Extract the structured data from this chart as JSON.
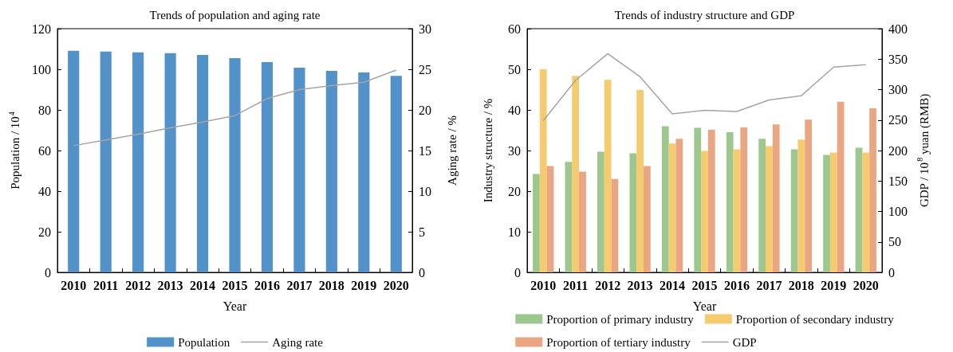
{
  "chart_data": [
    {
      "type": "bar",
      "title": "Trends of population and aging rate",
      "xlabel": "Year",
      "ylabel": "Population / 10$^{4}$",
      "y2label": "Aging rate / %",
      "categories": [
        "2010",
        "2011",
        "2012",
        "2013",
        "2014",
        "2015",
        "2016",
        "2017",
        "2018",
        "2019",
        "2020"
      ],
      "series": [
        {
          "name": "Population",
          "color": "#5292c8",
          "values": [
            109.1,
            108.7,
            108.3,
            107.9,
            107.1,
            105.5,
            103.5,
            100.8,
            99.2,
            98.4,
            96.8
          ]
        },
        {
          "name": "Aging rate",
          "type": "line",
          "axis": "y2",
          "color": "#a5a5a5",
          "values": [
            15.6,
            16.3,
            17.0,
            17.8,
            18.5,
            19.3,
            21.4,
            22.5,
            23.0,
            23.4,
            24.9
          ]
        }
      ],
      "ylim": [
        0,
        120
      ],
      "yticks": [
        0,
        20,
        40,
        60,
        80,
        100,
        120
      ],
      "y2lim": [
        0,
        30
      ],
      "y2ticks": [
        0,
        5,
        10,
        15,
        20,
        25,
        30
      ],
      "legend": "bottom",
      "marker": "none"
    },
    {
      "type": "bar",
      "title": "Trends of industry structure and GDP",
      "xlabel": "Year",
      "ylabel": "Industry structure / %",
      "y2label": "GDP / 10$^{8}$ yuan (RMB)",
      "categories": [
        "2010",
        "2011",
        "2012",
        "2013",
        "2014",
        "2015",
        "2016",
        "2017",
        "2018",
        "2019",
        "2020"
      ],
      "series": [
        {
          "name": "Proportion of primary industry",
          "color": "#9dc78e",
          "values": [
            24.2,
            27.2,
            29.7,
            29.3,
            36.0,
            35.6,
            34.5,
            32.9,
            30.3,
            28.9,
            30.7
          ]
        },
        {
          "name": "Proportion of secondary industry",
          "color": "#f4cb6e",
          "values": [
            50.0,
            48.4,
            47.4,
            44.9,
            31.7,
            29.9,
            30.3,
            31.1,
            32.7,
            29.5,
            29.5
          ]
        },
        {
          "name": "Proportion of tertiary industry",
          "color": "#eaa683",
          "values": [
            26.2,
            24.8,
            23.0,
            26.2,
            32.9,
            35.1,
            35.7,
            36.4,
            37.6,
            42.0,
            40.4
          ]
        },
        {
          "name": "GDP",
          "type": "line",
          "axis": "y2",
          "color": "#a5a5a5",
          "values": [
            249,
            315,
            359,
            321,
            260,
            266,
            264,
            283,
            290,
            337,
            341
          ]
        }
      ],
      "ylim": [
        0,
        60
      ],
      "yticks": [
        0,
        10,
        20,
        30,
        40,
        50,
        60
      ],
      "y2lim": [
        0,
        400
      ],
      "y2ticks": [
        0,
        50,
        100,
        150,
        200,
        250,
        300,
        350,
        400
      ],
      "legend": "bottom",
      "marker": "none"
    }
  ]
}
